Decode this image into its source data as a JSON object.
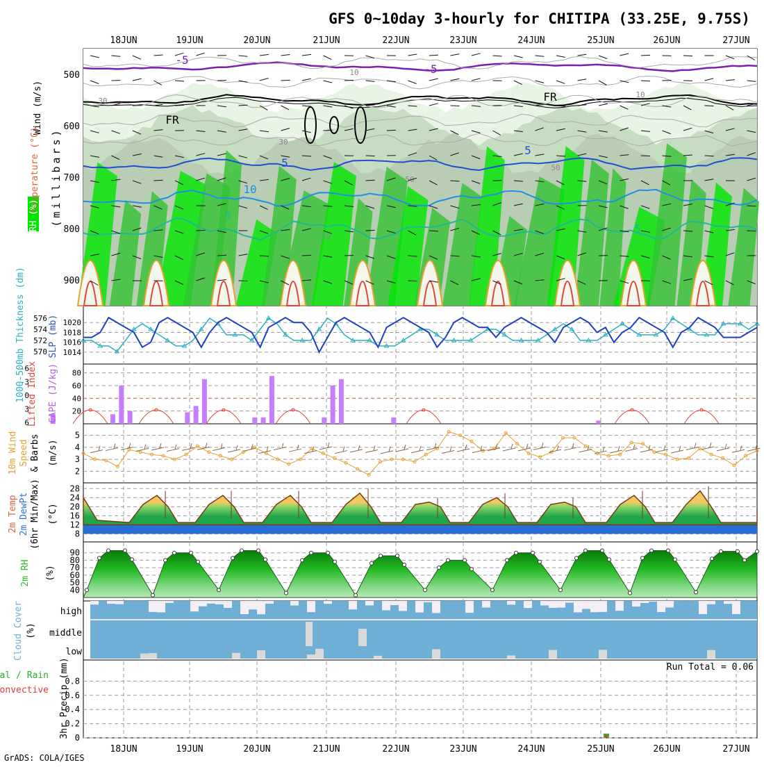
{
  "title": "GFS 0~10day 3-hourly for CHITIPA (33.25E, 9.75S)",
  "footer": "GrADS: COLA/IGES",
  "colors": {
    "grid": "#9a9a9a",
    "axis": "#000000",
    "rh_light": "#e8f4e4",
    "rh_mid": "#a9d8a3",
    "rh_dark": "#33c233",
    "rh_full": "#00e600",
    "slp": "#1f3fbf",
    "thk": "#2ab0c0",
    "cape": "#c77dff",
    "li": "#e0443a",
    "wind": "#e8a030",
    "barb": "#8b6a4a",
    "temp_warm": "#f4c860",
    "temp_mid": "#8ed66a",
    "temp_cool": "#22a64a",
    "dew": "#2a6fd6",
    "rh2m": "#2dbb2d",
    "cloud": "#6fafd6",
    "cloud_gap": "#f3eef6",
    "cloud_low": "#d9d9d9",
    "precip": "#2cb22c",
    "precip_conv": "#e23a3a",
    "temp_label": "#e06040",
    "wind_label": "#7a3aa8"
  },
  "x_axis": {
    "day_labels": [
      "18JUN",
      "19JUN",
      "20JUN",
      "21JUN",
      "22JUN",
      "23JUN",
      "24JUN",
      "25JUN",
      "26JUN",
      "27JUN"
    ]
  },
  "panels": {
    "cross_section": {
      "ylabel_left_1": "Wind (m/s)",
      "ylabel_left_2": "Temperature (°C)",
      "ylabel_left_3": "RH (%)",
      "ylabel": "(millibars)",
      "yticks": [
        "500",
        "600",
        "700",
        "800",
        "900"
      ],
      "contour_labels": [
        {
          "text": "-5",
          "color": "#7a1fb0"
        },
        {
          "text": "-5",
          "color": "#7a1fb0"
        },
        {
          "text": "FR",
          "color": "#000000"
        },
        {
          "text": "FR",
          "color": "#000000"
        },
        {
          "text": "5",
          "color": "#1f4fd0"
        },
        {
          "text": "5",
          "color": "#1f4fd0"
        },
        {
          "text": "10",
          "color": "#1f8fe0"
        },
        {
          "text": "5",
          "color": "#20b890"
        },
        {
          "text": "5",
          "color": "#20b890"
        },
        {
          "text": "10",
          "color": "#888888"
        },
        {
          "text": "10",
          "color": "#888888"
        },
        {
          "text": "30",
          "color": "#888888"
        },
        {
          "text": "30",
          "color": "#888888"
        },
        {
          "text": "50",
          "color": "#888888"
        },
        {
          "text": "50",
          "color": "#888888"
        },
        {
          "text": "50",
          "color": "#888888"
        }
      ]
    },
    "slp": {
      "ylabel_left": "1000-500mb Thickness (dm)",
      "ylabel_right": "SLP (mb)",
      "left_ticks": [
        "576",
        "574",
        "572",
        "570"
      ],
      "right_ticks": [
        "1020",
        "1018",
        "1016",
        "1014"
      ]
    },
    "cape": {
      "ylabel_left": "Lifted Index",
      "ylabel_right": "CAPE (J/kg)",
      "left_ticks": [
        "-6",
        "-3",
        "0",
        "3",
        "6"
      ],
      "right_ticks": [
        "80",
        "60",
        "40",
        "20"
      ]
    },
    "wind10m": {
      "ylabel_1": "10m Wind",
      "ylabel_2": "Speed",
      "ylabel_3": "& Barbs",
      "ylabel_units": "(m/s)",
      "ticks": [
        "5",
        "4",
        "3",
        "2"
      ]
    },
    "temp2m": {
      "ylabel_1": "2m Temp",
      "ylabel_2": "2m DewPt",
      "ylabel_3": "(6hr Min/Max)",
      "ylabel_units": "(°C)",
      "ticks": [
        "28",
        "24",
        "20",
        "16",
        "12",
        "8"
      ]
    },
    "rh2m": {
      "ylabel_1": "2m RH",
      "ylabel_units": "(%)",
      "ticks": [
        "90",
        "80",
        "70",
        "60",
        "50",
        "40"
      ]
    },
    "cloud": {
      "ylabel_1": "Cloud Cover",
      "ylabel_units": "(%)",
      "levels": [
        "high",
        "middle",
        "low"
      ]
    },
    "precip": {
      "ylabel_1": "Total / Rain",
      "ylabel_2": "Convective",
      "ylabel_3": "3hr Precip (mm)",
      "ticks": [
        "0.8",
        "0.6",
        "0.4",
        "0.2",
        "0"
      ],
      "run_total": "Run Total = 0.06"
    }
  },
  "chart_data": [
    {
      "type": "line",
      "title": "1000-500mb Thickness (dm) & SLP (mb)",
      "x": "3-hourly steps, 17JUN 12Z to 27JUN 12Z",
      "series": [
        {
          "name": "SLP (mb)",
          "axis": "right",
          "values": [
            1017,
            1017,
            1018,
            1021,
            1020,
            1019,
            1018,
            1015,
            1016,
            1020,
            1021,
            1020,
            1019,
            1018,
            1015,
            1018,
            1020,
            1021,
            1020,
            1019,
            1018,
            1015,
            1019,
            1020,
            1021,
            1020,
            1020,
            1018,
            1014,
            1017,
            1020,
            1021,
            1020,
            1019,
            1018,
            1015,
            1019,
            1020,
            1021,
            1020,
            1019,
            1018,
            1015,
            1017,
            1020,
            1021,
            1020,
            1019,
            1019,
            1017,
            1019,
            1020,
            1021,
            1020,
            1019,
            1018,
            1016,
            1019,
            1020,
            1021,
            1020,
            1018,
            1019,
            1016,
            1018,
            1019,
            1021,
            1020,
            1019,
            1018,
            1015,
            1018,
            1019,
            1021,
            1020,
            1019,
            1017,
            1017,
            1017,
            1018,
            1019
          ]
        },
        {
          "name": "Thickness (dm)",
          "axis": "left",
          "values": [
            572,
            572,
            571,
            571,
            570,
            572,
            574,
            575,
            574,
            573,
            572,
            571,
            571,
            572,
            574,
            576,
            575,
            573,
            573,
            573,
            572,
            574,
            576,
            575,
            573,
            572,
            572,
            572,
            574,
            576,
            575,
            573,
            572,
            572,
            572,
            571,
            571,
            571,
            572,
            573,
            574,
            574,
            573,
            572,
            572,
            572,
            572,
            573,
            574,
            574,
            573,
            572,
            572,
            572,
            572,
            573,
            574,
            575,
            574,
            572,
            572,
            572,
            573,
            574,
            575,
            574,
            573,
            573,
            573,
            574,
            576,
            575,
            574,
            573,
            573,
            573,
            575,
            575,
            575,
            574,
            575
          ]
        }
      ],
      "ylim_right": [
        1013,
        1022
      ],
      "ylim_left": [
        569,
        577
      ]
    },
    {
      "type": "bar",
      "title": "CAPE (J/kg) & Lifted Index",
      "series": [
        {
          "name": "CAPE (J/kg)",
          "values": [
            {
              "day": "17JUN",
              "time": "12Z",
              "v": 15
            },
            {
              "day": "18JUN",
              "time": "09Z",
              "v": 15
            },
            {
              "day": "18JUN",
              "time": "12Z",
              "v": 60
            },
            {
              "day": "18JUN",
              "time": "15Z",
              "v": 20
            },
            {
              "day": "19JUN",
              "time": "12Z",
              "v": 18
            },
            {
              "day": "19JUN",
              "time": "15Z",
              "v": 28
            },
            {
              "day": "19JUN",
              "time": "18Z",
              "v": 70
            },
            {
              "day": "20JUN",
              "time": "12Z",
              "v": 10
            },
            {
              "day": "20JUN",
              "time": "15Z",
              "v": 10
            },
            {
              "day": "20JUN",
              "time": "18Z",
              "v": 75
            },
            {
              "day": "21JUN",
              "time": "12Z",
              "v": 10
            },
            {
              "day": "21JUN",
              "time": "15Z",
              "v": 60
            },
            {
              "day": "21JUN",
              "time": "18Z",
              "v": 70
            },
            {
              "day": "22JUN",
              "time": "12Z",
              "v": 10
            },
            {
              "day": "25JUN",
              "time": "12Z",
              "v": 5
            }
          ]
        },
        {
          "name": "Lifted Index",
          "values": [
            4,
            5,
            3,
            -1,
            2,
            4,
            3,
            5,
            3,
            0,
            3,
            6,
            4,
            2,
            4,
            1
          ]
        }
      ],
      "ylim": [
        0,
        80
      ]
    },
    {
      "type": "line",
      "title": "10m Wind Speed (m/s)",
      "values": [
        3.5,
        3.0,
        2.9,
        2.4,
        3.8,
        3.6,
        3.4,
        3.3,
        3.0,
        3.4,
        4.1,
        3.6,
        3.3,
        3.0,
        3.6,
        4.0,
        3.5,
        3.0,
        2.6,
        3.0,
        3.9,
        3.5,
        3.1,
        2.7,
        2.2,
        1.7,
        2.8,
        3.0,
        3.0,
        2.8,
        3.4,
        3.9,
        5.3,
        5.0,
        4.5,
        3.7,
        3.9,
        5.2,
        4.3,
        3.5,
        3.2,
        3.6,
        4.8,
        4.8,
        4.1,
        3.5,
        3.3,
        3.4,
        4.4,
        4.3,
        3.6,
        3.4,
        3.0,
        3.1,
        3.9,
        3.4,
        3.1,
        2.5,
        3.3,
        3.7
      ],
      "ylim": [
        1.5,
        5.5
      ]
    },
    {
      "type": "area",
      "title": "2m Temp & DewPt (°C)",
      "series": [
        {
          "name": "2m Temp",
          "peaks": [
            {
              "day": "18JUN",
              "v": 25
            },
            {
              "day": "19JUN",
              "v": 25
            },
            {
              "day": "20JUN",
              "v": 25
            },
            {
              "day": "21JUN",
              "v": 26
            },
            {
              "day": "22JUN",
              "v": 22
            },
            {
              "day": "23JUN",
              "v": 24
            },
            {
              "day": "24JUN",
              "v": 22
            },
            {
              "day": "25JUN",
              "v": 25
            },
            {
              "day": "26JUN",
              "v": 27
            }
          ],
          "min": 13
        },
        {
          "name": "2m DewPt",
          "range": [
            8,
            12
          ]
        }
      ],
      "ylim": [
        6,
        30
      ]
    },
    {
      "type": "area",
      "title": "2m RH (%)",
      "series": [
        {
          "name": "2m RH",
          "troughs": [
            40,
            33,
            40,
            36,
            33,
            40,
            40,
            40,
            36,
            37
          ],
          "peaks": [
            93,
            90,
            93,
            90,
            86,
            80,
            90,
            93,
            93,
            92
          ]
        }
      ],
      "ylim": [
        30,
        100
      ]
    },
    {
      "type": "bar",
      "title": "3hr Precip (mm)",
      "values": [
        {
          "day": "25JUN",
          "time": "03Z",
          "v": 0.06
        }
      ],
      "ylim": [
        0,
        1
      ],
      "run_total": 0.06
    }
  ]
}
